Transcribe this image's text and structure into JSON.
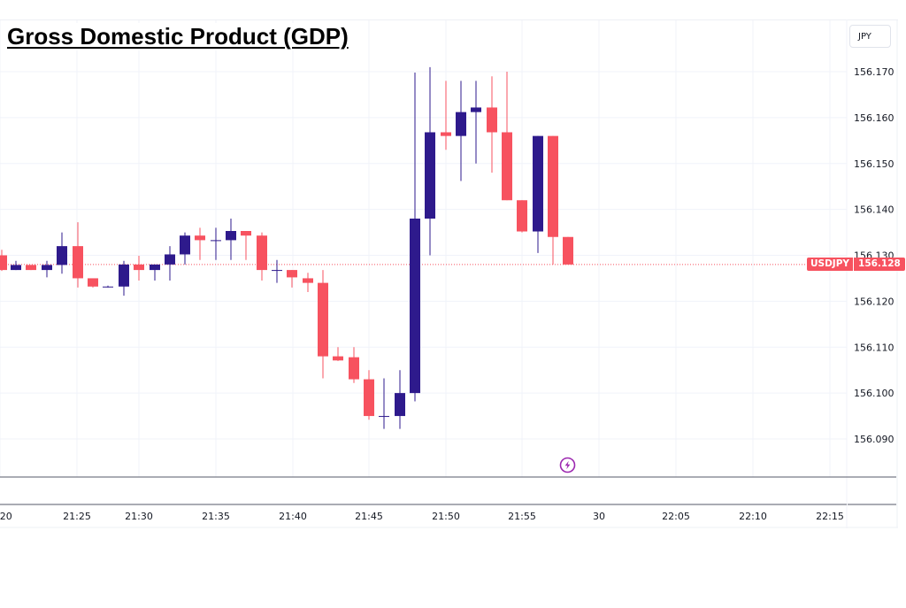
{
  "title": "Gross Domestic Product (GDP)",
  "symbol": "USDJPY",
  "currency_button": "JPY",
  "current_price": "156.128",
  "event_icon": "lightning-bolt-icon",
  "colors": {
    "up": "#2e1a8c",
    "down": "#f7525f",
    "grid": "#f0f3fa",
    "price_line": "#f7525f",
    "event": "#9c27b0"
  },
  "chart_data": {
    "type": "candlestick",
    "title": "Gross Domestic Product (GDP)",
    "symbol": "USDJPY",
    "xlabel": "",
    "ylabel": "JPY",
    "ylim": [
      156.082,
      156.178
    ],
    "grid": true,
    "y_ticks": [
      "156.170",
      "156.160",
      "156.150",
      "156.140",
      "156.130",
      "156.120",
      "156.110",
      "156.100",
      "156.090"
    ],
    "x_ticks": [
      ":20",
      "21:25",
      "21:30",
      "21:35",
      "21:40",
      "21:45",
      "21:50",
      "21:55",
      "30",
      "22:05",
      "22:10",
      "22:15"
    ],
    "last_price": 156.128,
    "candles": [
      {
        "x": 2,
        "o": 156.13,
        "h": 156.1312,
        "l": 156.1266,
        "c": 156.1268
      },
      {
        "x": 18,
        "o": 156.1268,
        "h": 156.1288,
        "l": 156.1268,
        "c": 156.1279
      },
      {
        "x": 35,
        "o": 156.1279,
        "h": 156.1279,
        "l": 156.1268,
        "c": 156.1268
      },
      {
        "x": 53,
        "o": 156.1268,
        "h": 156.1288,
        "l": 156.1252,
        "c": 156.1279
      },
      {
        "x": 70,
        "o": 156.1279,
        "h": 156.135,
        "l": 156.126,
        "c": 156.132
      },
      {
        "x": 88,
        "o": 156.132,
        "h": 156.1372,
        "l": 156.123,
        "c": 156.125
      },
      {
        "x": 105,
        "o": 156.125,
        "h": 156.125,
        "l": 156.123,
        "c": 156.1232
      },
      {
        "x": 122,
        "o": 156.1232,
        "h": 156.1234,
        "l": 156.123,
        "c": 156.1232
      },
      {
        "x": 140,
        "o": 156.1232,
        "h": 156.1288,
        "l": 156.1212,
        "c": 156.128
      },
      {
        "x": 157,
        "o": 156.128,
        "h": 156.1299,
        "l": 156.1245,
        "c": 156.1268
      },
      {
        "x": 175,
        "o": 156.1268,
        "h": 156.128,
        "l": 156.1245,
        "c": 156.128
      },
      {
        "x": 192,
        "o": 156.128,
        "h": 156.132,
        "l": 156.1245,
        "c": 156.1302
      },
      {
        "x": 209,
        "o": 156.1302,
        "h": 156.135,
        "l": 156.128,
        "c": 156.1343
      },
      {
        "x": 226,
        "o": 156.1343,
        "h": 156.136,
        "l": 156.129,
        "c": 156.1333
      },
      {
        "x": 244,
        "o": 156.1333,
        "h": 156.136,
        "l": 156.129,
        "c": 156.1333
      },
      {
        "x": 261,
        "o": 156.1333,
        "h": 156.138,
        "l": 156.129,
        "c": 156.1353
      },
      {
        "x": 278,
        "o": 156.1353,
        "h": 156.1353,
        "l": 156.129,
        "c": 156.1343
      },
      {
        "x": 296,
        "o": 156.1343,
        "h": 156.135,
        "l": 156.1245,
        "c": 156.1268
      },
      {
        "x": 313,
        "o": 156.1268,
        "h": 156.129,
        "l": 156.124,
        "c": 156.1268
      },
      {
        "x": 330,
        "o": 156.1268,
        "h": 156.1268,
        "l": 156.123,
        "c": 156.1252
      },
      {
        "x": 348,
        "o": 156.125,
        "h": 156.1262,
        "l": 156.122,
        "c": 156.124
      },
      {
        "x": 365,
        "o": 156.124,
        "h": 156.1268,
        "l": 156.1032,
        "c": 156.108
      },
      {
        "x": 382,
        "o": 156.108,
        "h": 156.11,
        "l": 156.107,
        "c": 156.1071
      },
      {
        "x": 400,
        "o": 156.1078,
        "h": 156.11,
        "l": 156.1022,
        "c": 156.103
      },
      {
        "x": 417,
        "o": 156.103,
        "h": 156.105,
        "l": 156.0942,
        "c": 156.095
      },
      {
        "x": 434,
        "o": 156.095,
        "h": 156.1032,
        "l": 156.0922,
        "c": 156.095
      },
      {
        "x": 452,
        "o": 156.095,
        "h": 156.105,
        "l": 156.0922,
        "c": 156.1
      },
      {
        "x": 469,
        "o": 156.1,
        "h": 156.1698,
        "l": 156.0982,
        "c": 156.138
      },
      {
        "x": 486,
        "o": 156.138,
        "h": 156.171,
        "l": 156.13,
        "c": 156.1568
      },
      {
        "x": 504,
        "o": 156.1568,
        "h": 156.168,
        "l": 156.153,
        "c": 156.156
      },
      {
        "x": 521,
        "o": 156.156,
        "h": 156.168,
        "l": 156.1462,
        "c": 156.1612
      },
      {
        "x": 538,
        "o": 156.1612,
        "h": 156.168,
        "l": 156.15,
        "c": 156.1622
      },
      {
        "x": 556,
        "o": 156.1622,
        "h": 156.169,
        "l": 156.148,
        "c": 156.1568
      },
      {
        "x": 573,
        "o": 156.1568,
        "h": 156.17,
        "l": 156.142,
        "c": 156.142
      },
      {
        "x": 590,
        "o": 156.142,
        "h": 156.142,
        "l": 156.135,
        "c": 156.1352
      },
      {
        "x": 608,
        "o": 156.1352,
        "h": 156.156,
        "l": 156.1305,
        "c": 156.156
      },
      {
        "x": 625,
        "o": 156.156,
        "h": 156.156,
        "l": 156.128,
        "c": 156.134
      },
      {
        "x": 642,
        "o": 156.134,
        "h": 156.134,
        "l": 156.128,
        "c": 156.128
      }
    ]
  }
}
